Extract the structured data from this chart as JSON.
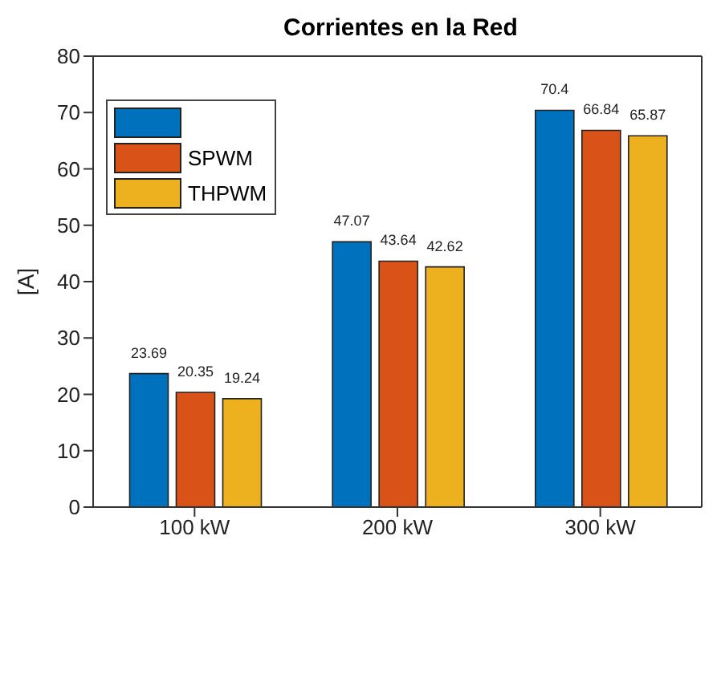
{
  "chart_data": {
    "type": "bar",
    "title": "Corrientes en la Red",
    "ylabel": "[A]",
    "categories": [
      "100 kW",
      "200 kW",
      "300 kW"
    ],
    "series": [
      {
        "color": "#0072bd",
        "values": [
          23.69,
          47.07,
          70.4
        ]
      },
      {
        "name": "SPWM",
        "color": "#d95319",
        "values": [
          20.35,
          43.64,
          66.84
        ]
      },
      {
        "name": "THPWM",
        "color": "#edb120",
        "values": [
          19.24,
          42.62,
          65.87
        ]
      }
    ],
    "ylim": [
      0,
      80
    ],
    "yticks": [
      0,
      10,
      20,
      30,
      40,
      50,
      60,
      70,
      80
    ],
    "data_labels": true,
    "legend": "top left",
    "grid": false
  }
}
